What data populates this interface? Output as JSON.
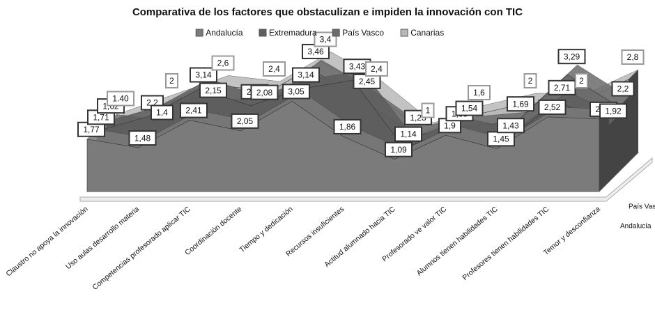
{
  "chart_data": {
    "type": "area3d",
    "title": "Comparativa de los factores que obstaculizan e impiden la innovación con TIC",
    "categories": [
      "Claustro no apoya la innovación",
      "Uso aulas desarrollo materia",
      "Competencias profesorado aplicar TIC",
      "Coordinación docente",
      "Tiempo y dedicación",
      "Recursos insuficientes",
      "Actitud alumnado hacia TIC",
      "Profesorado ve valor  TIC",
      "Alumnos tienen habilidades TIC",
      "Profesores tienen habilidades TIC",
      "Temor y desconfianza"
    ],
    "depth_labels": [
      "Andalucía",
      "País Vasco"
    ],
    "ylim": [
      0,
      4
    ],
    "series": [
      {
        "name": "Andalucía",
        "color": "#7b7b7b",
        "values": [
          1.77,
          1.48,
          2.41,
          2.05,
          3.05,
          1.86,
          1.09,
          1.9,
          1.45,
          2.52,
          2.45
        ],
        "value_labels": [
          "1,77",
          "1,48",
          "2,41",
          "2,05",
          "3,05",
          "1,86",
          "1,09",
          "1,9",
          "1,45",
          "2,52",
          "2,45"
        ]
      },
      {
        "name": "Extremadura",
        "color": "#5e5e5e",
        "values": [
          1.71,
          2.2,
          3.14,
          2.57,
          3.14,
          3.43,
          1.14,
          1.83,
          1.43,
          2.71,
          1.92
        ],
        "value_labels": [
          "1,71",
          "2,2",
          "3,14",
          "2,57",
          "3,14",
          "3,43",
          "1,14",
          "1,83",
          "1,43",
          "2,71",
          "1,92"
        ]
      },
      {
        "name": "País Vasco",
        "color": "#6c6c6c",
        "values": [
          1.62,
          1.4,
          2.15,
          2.08,
          3.46,
          2.45,
          1.23,
          1.54,
          1.69,
          3.29,
          2.2
        ],
        "value_labels": [
          "1,62",
          "1,4",
          "2,15",
          "2,08",
          "3,46",
          "2,45",
          "1,23",
          "1,54",
          "1,69",
          "3,29",
          "2,2"
        ]
      },
      {
        "name": "Canarias",
        "color": "#b9b9b9",
        "values": [
          1.4,
          2,
          2.6,
          2.4,
          3.4,
          2.4,
          1,
          1.6,
          2,
          2,
          2.8
        ],
        "value_labels": [
          "1.40",
          "2",
          "2,6",
          "2,4",
          "3,4",
          "2,4",
          "1",
          "1,6",
          "2",
          "2",
          "2,8"
        ]
      }
    ]
  }
}
